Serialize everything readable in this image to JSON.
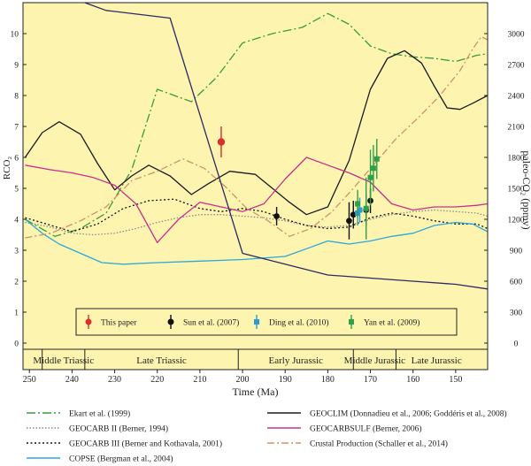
{
  "chart_data": {
    "type": "line",
    "xlabel": "Time (Ma)",
    "ylabel_left": "RCO₂",
    "ylabel_right": "paleo-CO₂ (ppmv)",
    "x_reversed": true,
    "xlim": [
      251.5,
      142.5
    ],
    "ylim_left": [
      -0.2,
      11
    ],
    "ylim_right_ppmv": [
      -60,
      3300
    ],
    "x_ticks": [
      250,
      240,
      230,
      220,
      210,
      200,
      190,
      180,
      170,
      160,
      150
    ],
    "y_ticks_left": [
      0,
      1,
      2,
      3,
      4,
      5,
      6,
      7,
      8,
      9,
      10
    ],
    "y_ticks_right": [
      0,
      300,
      600,
      900,
      1200,
      1500,
      1800,
      2100,
      2400,
      2700,
      3000
    ],
    "y_ticks_right_labels": [
      "0",
      "300",
      "600",
      "900",
      "1200",
      "1500",
      "1800",
      "2100",
      "2400",
      "2700",
      "3000"
    ],
    "periods": [
      {
        "name": "Middle Triassic",
        "start": 247,
        "end": 237
      },
      {
        "name": "Late Triassic",
        "start": 237,
        "end": 201
      },
      {
        "name": "Early Jurassic",
        "start": 201,
        "end": 174
      },
      {
        "name": "Middle Jurassic",
        "start": 174,
        "end": 164
      },
      {
        "name": "Late Jurassic",
        "start": 164,
        "end": 145
      }
    ],
    "series": [
      {
        "name": "Ekart et al. (1999)",
        "color": "#3a9c3a",
        "dash": "10 3 2 3",
        "x": [
          251,
          244,
          238,
          232,
          226,
          220,
          212,
          206,
          200,
          193,
          186,
          180,
          175,
          170,
          165,
          160,
          155,
          150,
          145,
          142.5
        ],
        "y": [
          4.0,
          3.45,
          3.7,
          4.2,
          5.6,
          8.2,
          7.8,
          8.6,
          9.7,
          10.0,
          10.2,
          10.65,
          10.3,
          9.6,
          9.35,
          9.25,
          9.2,
          9.1,
          9.3,
          9.35
        ]
      },
      {
        "name": "GEOCARB II (Berner, 1994)",
        "color": "#8a8a8a",
        "dash": "1.5 2",
        "x": [
          251,
          245,
          240,
          235,
          230,
          225,
          220,
          215,
          210,
          205,
          200,
          195,
          190,
          185,
          180,
          175,
          170,
          165,
          160,
          155,
          150,
          145,
          142.5
        ],
        "y": [
          3.9,
          3.75,
          3.55,
          3.5,
          3.55,
          3.7,
          3.9,
          4.05,
          4.15,
          4.15,
          4.1,
          4.05,
          3.95,
          3.8,
          3.75,
          3.8,
          4.0,
          4.15,
          4.25,
          4.3,
          4.25,
          4.2,
          4.1
        ]
      },
      {
        "name": "GEOCARB III (Berner and Kothavala, 2001)",
        "color": "#111111",
        "dash": "2 2.5",
        "x": [
          251,
          246,
          240,
          234,
          228,
          222,
          216,
          210,
          205,
          200,
          195,
          190,
          185,
          180,
          175,
          170,
          165,
          160,
          155,
          150,
          145,
          142.5
        ],
        "y": [
          4.05,
          3.85,
          3.6,
          3.85,
          4.35,
          4.6,
          4.65,
          4.35,
          4.25,
          4.35,
          4.25,
          4.0,
          3.8,
          3.7,
          3.75,
          4.05,
          4.2,
          4.1,
          3.95,
          3.85,
          3.85,
          3.7
        ]
      },
      {
        "name": "COPSE (Bergman et al., 2004)",
        "color": "#2aa7df",
        "dash": "",
        "x": [
          251,
          247,
          243,
          238,
          233,
          228,
          220,
          210,
          200,
          190,
          185,
          180,
          175,
          170,
          165,
          160,
          155,
          150,
          146,
          142.5
        ],
        "y": [
          4.0,
          3.55,
          3.2,
          2.9,
          2.6,
          2.55,
          2.6,
          2.65,
          2.7,
          2.8,
          3.05,
          3.3,
          3.2,
          3.3,
          3.45,
          3.55,
          3.8,
          3.9,
          3.85,
          3.6
        ]
      },
      {
        "name": "GEOCLIM (Donnadieu et al., 2006; Goddéris et al., 2008)",
        "color": "#1a1a1a",
        "dash": "",
        "x": [
          251,
          247,
          243,
          238,
          234,
          230,
          226,
          222,
          217,
          212,
          208,
          203,
          197,
          193,
          189,
          185,
          180,
          175,
          170,
          166,
          162,
          158,
          155,
          152,
          149,
          146,
          142.5
        ],
        "y": [
          6.0,
          6.8,
          7.15,
          6.75,
          5.8,
          4.95,
          5.4,
          5.75,
          5.4,
          4.8,
          5.15,
          5.55,
          5.45,
          5.0,
          4.55,
          4.15,
          4.4,
          5.9,
          8.2,
          9.2,
          9.45,
          9.05,
          8.3,
          7.6,
          7.55,
          7.75,
          8.0
        ]
      },
      {
        "name": "GEOCARBSULF (Berner, 2006)",
        "color": "#c8308c",
        "dash": "",
        "x": [
          251,
          245,
          240,
          235,
          230,
          225,
          220,
          215,
          210,
          205,
          200,
          195,
          190,
          185,
          180,
          175,
          170,
          165,
          160,
          155,
          150,
          145,
          142.5
        ],
        "y": [
          5.75,
          5.6,
          5.5,
          5.35,
          5.1,
          4.5,
          3.25,
          4.0,
          4.55,
          4.4,
          4.25,
          4.5,
          5.3,
          6.0,
          5.75,
          5.5,
          5.2,
          4.5,
          4.3,
          4.4,
          4.4,
          4.45,
          4.5
        ]
      },
      {
        "name": "Crustal Production (Schaller et al., 2014)",
        "color": "#d19268",
        "dash": "8 3 2 3",
        "x": [
          251,
          245,
          238,
          232,
          226,
          220,
          214,
          209,
          204,
          199,
          194,
          189,
          184,
          179,
          174,
          169,
          164,
          159,
          154,
          149,
          146,
          144,
          142.5
        ],
        "y": [
          3.4,
          3.55,
          3.95,
          4.4,
          5.25,
          5.55,
          5.95,
          5.65,
          5.05,
          4.35,
          3.95,
          3.45,
          3.7,
          4.25,
          5.0,
          5.8,
          6.6,
          7.25,
          7.95,
          8.8,
          9.5,
          9.9,
          9.8
        ]
      },
      {
        "name": "Lower diagonal line",
        "color": "#2a2a66",
        "dash": "",
        "x": [
          200,
          190,
          180,
          170,
          160,
          150,
          142.5
        ],
        "y": [
          2.9,
          2.55,
          2.2,
          2.1,
          2.0,
          1.9,
          1.75
        ]
      },
      {
        "name": "Upper diagonal line",
        "color": "#2a2a66",
        "dash": "",
        "x": [
          237,
          232,
          217,
          200
        ],
        "y": [
          11,
          10.75,
          10.5,
          2.9
        ]
      }
    ],
    "points": [
      {
        "name": "This paper",
        "color": "#d8302b",
        "shape": "circle",
        "data": [
          {
            "x": 205,
            "y": 6.5,
            "err": 0.5
          }
        ]
      },
      {
        "name": "Sun et al. (2007)",
        "color": "#111111",
        "shape": "circle",
        "data": [
          {
            "x": 192,
            "y": 4.1,
            "err": 0.3
          },
          {
            "x": 175,
            "y": 3.95,
            "err": 0.6
          },
          {
            "x": 174,
            "y": 4.15,
            "err": 0.45
          },
          {
            "x": 171,
            "y": 4.3,
            "err": 0.5
          },
          {
            "x": 170,
            "y": 4.6,
            "err": 0.4
          }
        ]
      },
      {
        "name": "Ding et al. (2010)",
        "color": "#2a9bd9",
        "shape": "square",
        "data": [
          {
            "x": 173,
            "y": 4.2,
            "err": 0.4
          },
          {
            "x": 172.5,
            "y": 4.3,
            "err": 0.4
          }
        ]
      },
      {
        "name": "Yan et al. (2009)",
        "color": "#2ea04a",
        "shape": "square",
        "data": [
          {
            "x": 173,
            "y": 4.5,
            "err": 0.45
          },
          {
            "x": 171,
            "y": 4.35,
            "err": 1.0
          },
          {
            "x": 170,
            "y": 5.35,
            "err": 0.9
          },
          {
            "x": 169.3,
            "y": 5.65,
            "err": 0.75
          },
          {
            "x": 168.5,
            "y": 5.95,
            "err": 0.65
          }
        ]
      }
    ],
    "legend_box": [
      {
        "label": "This paper",
        "color": "#d8302b",
        "shape": "circle"
      },
      {
        "label": "Sun et al. (2007)",
        "color": "#111111",
        "shape": "circle"
      },
      {
        "label": "Ding et al. (2010)",
        "color": "#2a9bd9",
        "shape": "square"
      },
      {
        "label": "Yan et al. (2009)",
        "color": "#2ea04a",
        "shape": "square"
      }
    ],
    "legend_lines": [
      {
        "label": "Ekart et al. (1999)",
        "color": "#3a9c3a",
        "dash": "10 3 2 3"
      },
      {
        "label": "GEOCLIM (Donnadieu et al., 2006; Goddéris et al., 2008)",
        "color": "#1a1a1a",
        "dash": ""
      },
      {
        "label": "GEOCARB II (Berner, 1994)",
        "color": "#8a8a8a",
        "dash": "1.5 2"
      },
      {
        "label": "GEOCARBSULF (Berner, 2006)",
        "color": "#c8308c",
        "dash": ""
      },
      {
        "label": "GEOCARB III (Berner and Kothavala, 2001)",
        "color": "#111111",
        "dash": "2 2.5"
      },
      {
        "label": "Crustal Production (Schaller et al., 2014)",
        "color": "#d19268",
        "dash": "8 3 2 3"
      },
      {
        "label": "COPSE (Bergman et al., 2004)",
        "color": "#2aa7df",
        "dash": ""
      }
    ],
    "colors": {
      "background": "#fdf4b0",
      "axis": "#222222",
      "legend_box_bg": "#fdf4b0"
    }
  }
}
